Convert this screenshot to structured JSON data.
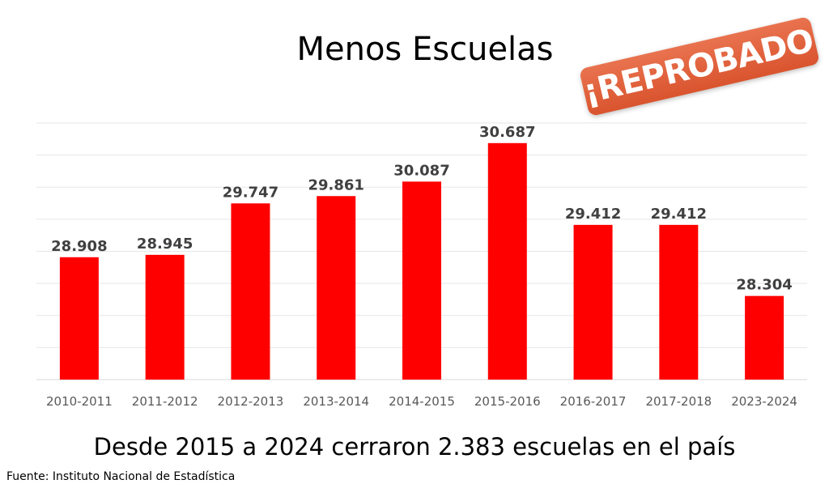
{
  "stamp_text": "¡REPROBADO!",
  "subtitle": "Desde 2015 a 2024 cerraron 2.383 escuelas en el país",
  "source": "Fuente: Instituto Nacional de Estadística",
  "chart_data": {
    "type": "bar",
    "title": "Menos Escuelas",
    "categories": [
      "2010-2011",
      "2011-2012",
      "2012-2013",
      "2013-2014",
      "2014-2015",
      "2015-2016",
      "2016-2017",
      "2017-2018",
      "2023-2024"
    ],
    "values": [
      28908,
      28945,
      29747,
      29861,
      30087,
      30687,
      29412,
      29412,
      28304
    ],
    "data_labels": [
      "28.908",
      "28.945",
      "29.747",
      "29.861",
      "30.087",
      "30.687",
      "29.412",
      "29.412",
      "28.304"
    ],
    "xlabel": "",
    "ylabel": "",
    "ylim": [
      27000,
      31000
    ],
    "grid_step": 500,
    "grid": true,
    "bar_color": "#ff0000"
  }
}
